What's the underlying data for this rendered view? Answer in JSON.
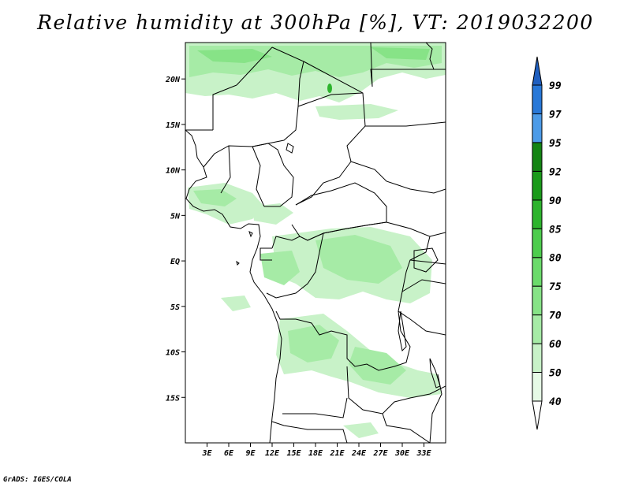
{
  "title": "Relative humidity at 300hPa [%], VT: 2019032200",
  "credit": "GrADS: IGES/COLA",
  "map": {
    "lon_range": [
      0,
      36
    ],
    "lat_range": [
      -20,
      24
    ],
    "lat_ticks": [
      {
        "value": 20,
        "label": "20N"
      },
      {
        "value": 15,
        "label": "15N"
      },
      {
        "value": 10,
        "label": "10N"
      },
      {
        "value": 5,
        "label": "5N"
      },
      {
        "value": 0,
        "label": "EQ"
      },
      {
        "value": -5,
        "label": "5S"
      },
      {
        "value": -10,
        "label": "10S"
      },
      {
        "value": -15,
        "label": "15S"
      }
    ],
    "lon_ticks": [
      {
        "value": 3,
        "label": "3E"
      },
      {
        "value": 6,
        "label": "6E"
      },
      {
        "value": 9,
        "label": "9E"
      },
      {
        "value": 12,
        "label": "12E"
      },
      {
        "value": 15,
        "label": "15E"
      },
      {
        "value": 18,
        "label": "18E"
      },
      {
        "value": 21,
        "label": "21E"
      },
      {
        "value": 24,
        "label": "24E"
      },
      {
        "value": 27,
        "label": "27E"
      },
      {
        "value": 30,
        "label": "30E"
      },
      {
        "value": 33,
        "label": "33E"
      }
    ]
  },
  "colorbar": {
    "levels": [
      "40",
      "50",
      "60",
      "70",
      "75",
      "80",
      "85",
      "90",
      "92",
      "95",
      "97",
      "99"
    ],
    "colors": [
      "#ffffff",
      "#e6fae6",
      "#c8f2c8",
      "#a6eba6",
      "#87e387",
      "#6bdb6b",
      "#4dcd4d",
      "#2db42d",
      "#1a9a1a",
      "#138413",
      "#4c9be8",
      "#2878d8",
      "#1f5fc0"
    ]
  }
}
